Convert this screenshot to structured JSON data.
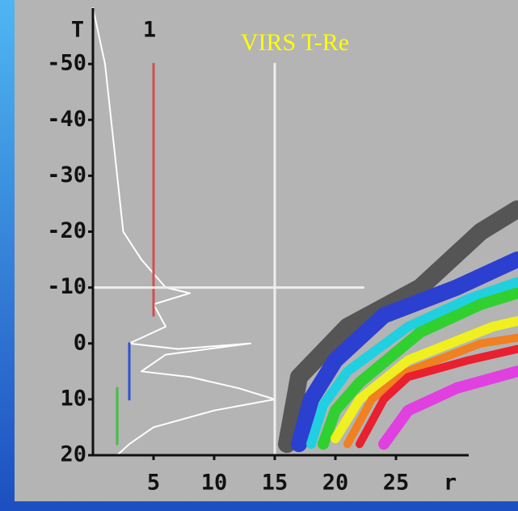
{
  "chart_data": {
    "type": "line",
    "title": "VIRS T-Re",
    "annotation": "1",
    "xlabel": "r",
    "ylabel": "T",
    "xlim": [
      0,
      35
    ],
    "ylim": [
      -60,
      20
    ],
    "y_inverted": true,
    "xticks": [
      5,
      10,
      15,
      20,
      25
    ],
    "yticks": [
      -50,
      -40,
      -30,
      -20,
      -10,
      0,
      10,
      20
    ],
    "series": [
      {
        "color": "#555555",
        "width": 22,
        "x": [
          16,
          17,
          21,
          27,
          32,
          35
        ],
        "values": [
          18,
          6,
          -3,
          -10,
          -20,
          -24
        ]
      },
      {
        "color": "#2b3fd0",
        "width": 20,
        "x": [
          17,
          18,
          20,
          24,
          30,
          35
        ],
        "values": [
          18,
          10,
          3,
          -5,
          -10,
          -15
        ]
      },
      {
        "color": "#20d0e0",
        "width": 12,
        "x": [
          18,
          19,
          21,
          26,
          31,
          35
        ],
        "values": [
          18,
          11,
          5,
          -3,
          -8,
          -11
        ]
      },
      {
        "color": "#30d030",
        "width": 14,
        "x": [
          19,
          20,
          22,
          27,
          32,
          35
        ],
        "values": [
          18,
          12,
          7,
          -2,
          -7,
          -9
        ]
      },
      {
        "color": "#f0f020",
        "width": 12,
        "x": [
          20,
          22,
          26,
          33,
          35
        ],
        "values": [
          17,
          10,
          3,
          -3,
          -4
        ]
      },
      {
        "color": "#f08020",
        "width": 10,
        "x": [
          21,
          23,
          26,
          32,
          35
        ],
        "values": [
          18,
          10,
          5,
          0,
          -1
        ]
      },
      {
        "color": "#e82030",
        "width": 10,
        "x": [
          22,
          24,
          26,
          31,
          35
        ],
        "values": [
          18,
          10,
          6,
          3,
          1
        ]
      },
      {
        "color": "#e040e0",
        "width": 14,
        "x": [
          24,
          26,
          30,
          35
        ],
        "values": [
          18,
          12,
          8,
          5
        ]
      },
      {
        "color": "#ffffff",
        "width": 2,
        "x": [
          0,
          1,
          1.5,
          2,
          2.5,
          4,
          6,
          8,
          5,
          6,
          3,
          7,
          13,
          6,
          4,
          8,
          12,
          15,
          10,
          5,
          3,
          2
        ],
        "values": [
          -60,
          -50,
          -40,
          -30,
          -20,
          -15,
          -10,
          -9,
          -7,
          -3,
          0,
          1,
          0,
          2,
          5,
          6,
          8,
          10,
          12,
          15,
          18,
          20
        ]
      },
      {
        "color": "#d05050",
        "width": 3,
        "x": [
          5,
          5
        ],
        "values": [
          -50,
          -5
        ]
      },
      {
        "color": "#3050d0",
        "width": 3,
        "x": [
          3,
          3
        ],
        "values": [
          0,
          10
        ]
      },
      {
        "color": "#40c040",
        "width": 3,
        "x": [
          2,
          2
        ],
        "values": [
          8,
          18
        ]
      },
      {
        "color": "#eeeeee",
        "width": 3,
        "x": [
          15,
          15
        ],
        "values": [
          -50,
          20
        ]
      },
      {
        "color": "#eeeeee",
        "width": 3,
        "x": [
          0,
          22.3
        ],
        "values": [
          -10,
          -10
        ]
      }
    ]
  }
}
